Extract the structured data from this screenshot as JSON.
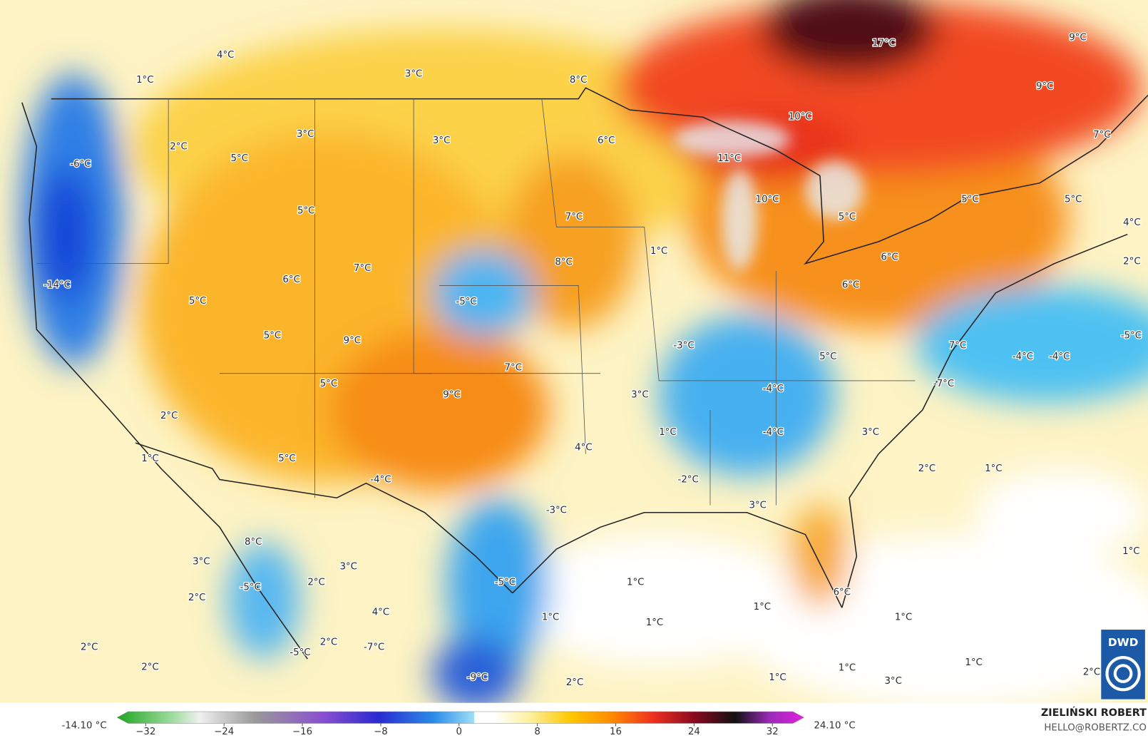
{
  "map": {
    "labels": [
      "4°C",
      "3°C",
      "1°C",
      "8°C",
      "17°C",
      "9°C",
      "9°C",
      "10°C",
      "3°C",
      "3°C",
      "6°C",
      "2°C",
      "5°C",
      "11°C",
      "7°C",
      "-6°C",
      "10°C",
      "5°C",
      "5°C",
      "5°C",
      "7°C",
      "5°C",
      "4°C",
      "1°C",
      "6°C",
      "2°C",
      "8°C",
      "7°C",
      "6°C",
      "-14°C",
      "6°C",
      "5°C",
      "-5°C",
      "5°C",
      "9°C",
      "-3°C",
      "7°C",
      "-5°C",
      "-4°C",
      "-4°C",
      "5°C",
      "7°C",
      "5°C",
      "-4°C",
      "-7°C",
      "9°C",
      "3°C",
      "2°C",
      "1°C",
      "-4°C",
      "3°C",
      "4°C",
      "1°C",
      "5°C",
      "2°C",
      "1°C",
      "-4°C",
      "-2°C",
      "-3°C",
      "3°C",
      "8°C",
      "3°C",
      "3°C",
      "1°C",
      "2°C",
      "-5°C",
      "-5°C",
      "1°C",
      "2°C",
      "6°C",
      "1°C",
      "4°C",
      "1°C",
      "1°C",
      "1°C",
      "2°C",
      "2°C",
      "-7°C",
      "-5°C",
      "2°C",
      "-9°C",
      "1°C",
      "1°C",
      "1°C",
      "2°C",
      "3°C",
      "2°C"
    ]
  },
  "legend": {
    "min_label": "-14.10 °C",
    "max_label": "24.10 °C",
    "ticks": [
      "−32",
      "−24",
      "−16",
      "−8",
      "0",
      "8",
      "16",
      "24",
      "32"
    ]
  },
  "credit": {
    "name": "ZIELIŃSKI ROBERT",
    "email": "HELLO@ROBERTZ.CO",
    "logo": "DWD"
  }
}
